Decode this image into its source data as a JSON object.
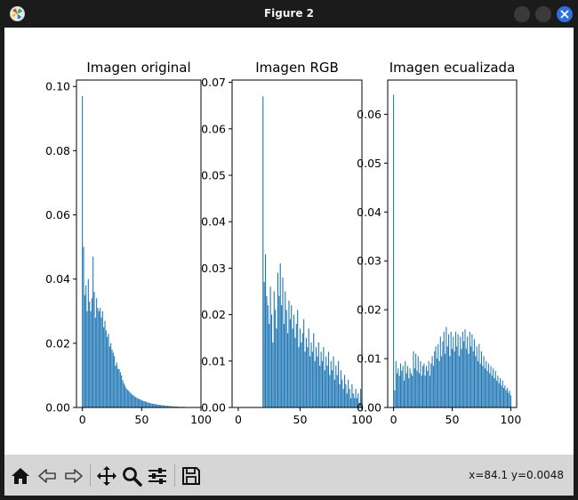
{
  "window": {
    "title": "Figure 2",
    "icon": "matplotlib-logo-icon",
    "controls": [
      "minimize-icon",
      "maximize-icon",
      "close-icon"
    ],
    "accent": "#2f6fe0"
  },
  "toolbar": {
    "buttons": [
      "home-icon",
      "back-arrow-icon",
      "forward-arrow-icon",
      "pan-icon",
      "zoom-icon",
      "configure-subplots-icon",
      "save-icon"
    ],
    "coordinates": "x=84.1 y=0.0048"
  },
  "chart_data": [
    {
      "type": "bar",
      "title": "Imagen original",
      "color": "#1f77b4",
      "xlim": [
        -5,
        100
      ],
      "ylim": [
        0,
        0.102
      ],
      "xticks": [
        0,
        50,
        100
      ],
      "xtick_labels": [
        "0",
        "50",
        "100"
      ],
      "yticks": [
        0,
        0.02,
        0.04,
        0.06,
        0.08,
        0.1
      ],
      "ytick_labels": [
        "0.00",
        "0.02",
        "0.04",
        "0.06",
        "0.08",
        "0.10"
      ],
      "x": [
        0,
        1,
        2,
        3,
        4,
        5,
        6,
        7,
        8,
        9,
        10,
        11,
        12,
        13,
        14,
        15,
        16,
        17,
        18,
        19,
        20,
        21,
        22,
        23,
        24,
        25,
        26,
        27,
        28,
        29,
        30,
        31,
        32,
        33,
        34,
        35,
        36,
        37,
        38,
        39,
        40,
        41,
        42,
        43,
        44,
        45,
        46,
        47,
        48,
        49,
        50,
        51,
        52,
        53,
        54,
        55,
        56,
        57,
        58,
        59,
        60,
        61,
        62,
        63,
        64,
        65,
        66,
        67,
        68,
        69,
        70,
        71,
        72,
        73,
        74,
        75,
        76,
        77,
        78,
        79,
        80,
        81,
        82,
        83,
        84,
        85,
        86,
        87,
        88,
        89,
        90,
        91,
        92,
        93,
        94,
        95
      ],
      "values": [
        0.097,
        0.05,
        0.035,
        0.038,
        0.03,
        0.04,
        0.033,
        0.03,
        0.034,
        0.047,
        0.036,
        0.028,
        0.034,
        0.031,
        0.03,
        0.031,
        0.028,
        0.03,
        0.025,
        0.027,
        0.024,
        0.022,
        0.023,
        0.019,
        0.02,
        0.018,
        0.017,
        0.016,
        0.013,
        0.014,
        0.012,
        0.012,
        0.011,
        0.01,
        0.0085,
        0.0075,
        0.0068,
        0.006,
        0.0055,
        0.0052,
        0.0048,
        0.0044,
        0.004,
        0.0038,
        0.0035,
        0.0032,
        0.003,
        0.0028,
        0.0026,
        0.0025,
        0.0023,
        0.0021,
        0.002,
        0.0019,
        0.0017,
        0.0016,
        0.0015,
        0.0014,
        0.0013,
        0.0012,
        0.0011,
        0.0011,
        0.001,
        0.0009,
        0.0009,
        0.0008,
        0.0008,
        0.0007,
        0.0007,
        0.0006,
        0.0006,
        0.0005,
        0.0005,
        0.0005,
        0.0004,
        0.0004,
        0.0004,
        0.0003,
        0.0003,
        0.0003,
        0.0003,
        0.0002,
        0.0002,
        0.0002,
        0.0002,
        0.0002,
        0.0002,
        0.0001,
        0.0001,
        0.0001,
        0.0001,
        0.0001,
        0.0001,
        0.0001,
        0.0001,
        0.0001
      ]
    },
    {
      "type": "bar",
      "title": "Imagen RGB",
      "color": "#1f77b4",
      "xlim": [
        -5,
        100
      ],
      "ylim": [
        0,
        0.0705
      ],
      "xticks": [
        0,
        50,
        100
      ],
      "xtick_labels": [
        "0",
        "50",
        "100"
      ],
      "yticks": [
        0,
        0.01,
        0.02,
        0.03,
        0.04,
        0.05,
        0.06,
        0.07
      ],
      "ytick_labels": [
        "0.00",
        "0.01",
        "0.02",
        "0.03",
        "0.04",
        "0.05",
        "0.06",
        "0.07"
      ],
      "x": [
        20,
        21,
        22,
        23,
        24,
        25,
        26,
        27,
        28,
        29,
        30,
        31,
        32,
        33,
        34,
        35,
        36,
        37,
        38,
        39,
        40,
        41,
        42,
        43,
        44,
        45,
        46,
        47,
        48,
        49,
        50,
        51,
        52,
        53,
        54,
        55,
        56,
        57,
        58,
        59,
        60,
        61,
        62,
        63,
        64,
        65,
        66,
        67,
        68,
        69,
        70,
        71,
        72,
        73,
        74,
        75,
        76,
        77,
        78,
        79,
        80,
        81,
        82,
        83,
        84,
        85,
        86,
        87,
        88,
        89,
        90,
        91,
        92,
        93,
        94,
        95,
        96,
        97,
        98,
        99,
        100
      ],
      "values": [
        0.067,
        0.027,
        0.033,
        0.024,
        0.022,
        0.018,
        0.026,
        0.02,
        0.014,
        0.025,
        0.021,
        0.017,
        0.029,
        0.024,
        0.031,
        0.022,
        0.028,
        0.018,
        0.025,
        0.021,
        0.016,
        0.023,
        0.019,
        0.022,
        0.017,
        0.02,
        0.015,
        0.018,
        0.021,
        0.013,
        0.017,
        0.014,
        0.016,
        0.019,
        0.012,
        0.015,
        0.013,
        0.017,
        0.011,
        0.014,
        0.012,
        0.016,
        0.01,
        0.013,
        0.011,
        0.014,
        0.009,
        0.012,
        0.01,
        0.013,
        0.008,
        0.011,
        0.009,
        0.012,
        0.007,
        0.01,
        0.008,
        0.011,
        0.006,
        0.009,
        0.007,
        0.01,
        0.005,
        0.008,
        0.006,
        0.004,
        0.007,
        0.005,
        0.003,
        0.006,
        0.004,
        0.002,
        0.005,
        0.003,
        0.002,
        0.004,
        0.002,
        0.003,
        0.001,
        0.004,
        0.002
      ]
    },
    {
      "type": "bar",
      "title": "Imagen ecualizada",
      "color": "#1f77b4",
      "xlim": [
        -5,
        105
      ],
      "ylim": [
        0,
        0.067
      ],
      "xticks": [
        0,
        50,
        100
      ],
      "xtick_labels": [
        "0",
        "50",
        "100"
      ],
      "yticks": [
        0,
        0.01,
        0.02,
        0.03,
        0.04,
        0.05,
        0.06
      ],
      "ytick_labels": [
        "0.00",
        "0.01",
        "0.02",
        "0.03",
        "0.04",
        "0.05",
        "0.06"
      ],
      "x": [
        0,
        1,
        2,
        3,
        4,
        5,
        6,
        7,
        8,
        9,
        10,
        11,
        12,
        13,
        14,
        15,
        16,
        17,
        18,
        19,
        20,
        21,
        22,
        23,
        24,
        25,
        26,
        27,
        28,
        29,
        30,
        31,
        32,
        33,
        34,
        35,
        36,
        37,
        38,
        39,
        40,
        41,
        42,
        43,
        44,
        45,
        46,
        47,
        48,
        49,
        50,
        51,
        52,
        53,
        54,
        55,
        56,
        57,
        58,
        59,
        60,
        61,
        62,
        63,
        64,
        65,
        66,
        67,
        68,
        69,
        70,
        71,
        72,
        73,
        74,
        75,
        76,
        77,
        78,
        79,
        80,
        81,
        82,
        83,
        84,
        85,
        86,
        87,
        88,
        89,
        90,
        91,
        92,
        93,
        94,
        95,
        96,
        97,
        98,
        99,
        100
      ],
      "values": [
        0.064,
        0.0035,
        0.0095,
        0.007,
        0.008,
        0.0065,
        0.009,
        0.0075,
        0.0085,
        0.0055,
        0.0095,
        0.007,
        0.0085,
        0.006,
        0.008,
        0.007,
        0.0065,
        0.0115,
        0.008,
        0.011,
        0.0075,
        0.0105,
        0.007,
        0.0095,
        0.0065,
        0.0085,
        0.009,
        0.0065,
        0.0085,
        0.0075,
        0.0095,
        0.0065,
        0.009,
        0.0105,
        0.0085,
        0.0115,
        0.0125,
        0.01,
        0.013,
        0.0095,
        0.0145,
        0.0105,
        0.0135,
        0.0155,
        0.011,
        0.0165,
        0.0125,
        0.015,
        0.0105,
        0.0155,
        0.012,
        0.0145,
        0.0115,
        0.0155,
        0.0125,
        0.015,
        0.0105,
        0.0145,
        0.012,
        0.0155,
        0.0135,
        0.016,
        0.012,
        0.0145,
        0.011,
        0.0155,
        0.0125,
        0.015,
        0.0115,
        0.014,
        0.0105,
        0.0125,
        0.0095,
        0.013,
        0.009,
        0.0115,
        0.0085,
        0.0105,
        0.008,
        0.0095,
        0.0075,
        0.009,
        0.007,
        0.0085,
        0.0065,
        0.008,
        0.006,
        0.0075,
        0.0055,
        0.0065,
        0.005,
        0.006,
        0.0045,
        0.0055,
        0.004,
        0.0045,
        0.0035,
        0.004,
        0.003,
        0.0035,
        0.0025
      ]
    }
  ]
}
